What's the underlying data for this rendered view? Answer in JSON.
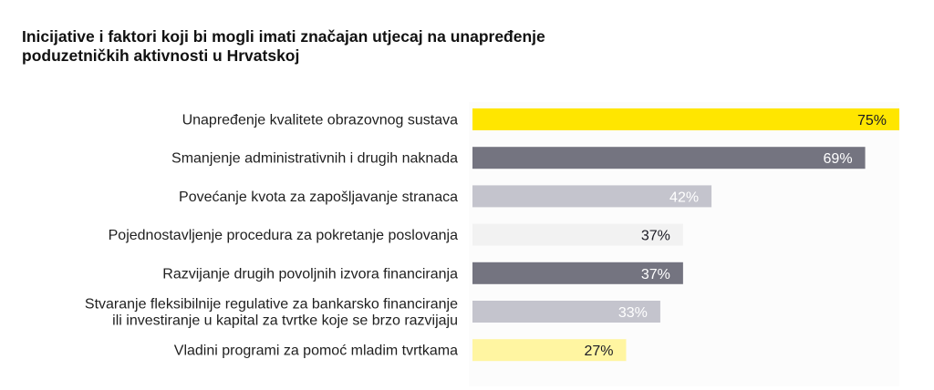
{
  "chart_data": {
    "type": "bar",
    "orientation": "horizontal",
    "title": "Inicijative i faktori koji bi mogli imati značajan utjecaj na unapređenje\npoduzetničkih aktivnosti u Hrvatskoj",
    "xlabel": "",
    "ylabel": "",
    "xlim": [
      0,
      75
    ],
    "grid": false,
    "legend": "none",
    "categories": [
      "Unapređenje kvalitete obrazovnog sustava",
      "Smanjenje administrativnih i drugih naknada",
      "Povećanje kvota za zapošljavanje stranaca",
      "Pojednostavljenje procedura za pokretanje poslovanja",
      "Razvijanje drugih povoljnih izvora financiranja",
      "Stvaranje fleksibilnije regulative za bankarsko financiranje\nili investiranje u kapital za tvrtke koje se brzo razvijaju",
      "Vladini programi za pomoć mladim tvrtkama"
    ],
    "values": [
      75,
      69,
      42,
      37,
      37,
      33,
      27
    ],
    "value_labels": [
      "75%",
      "69%",
      "42%",
      "37%",
      "37%",
      "33%",
      "27%"
    ],
    "bar_colors": [
      "#ffe600",
      "#747480",
      "#c4c4cd",
      "#f2f2f2",
      "#747480",
      "#c4c4cd",
      "#fff5a1"
    ],
    "label_colors": [
      "#1a1a24",
      "#ffffff",
      "#ffffff",
      "#1a1a24",
      "#ffffff",
      "#ffffff",
      "#1a1a24"
    ]
  }
}
